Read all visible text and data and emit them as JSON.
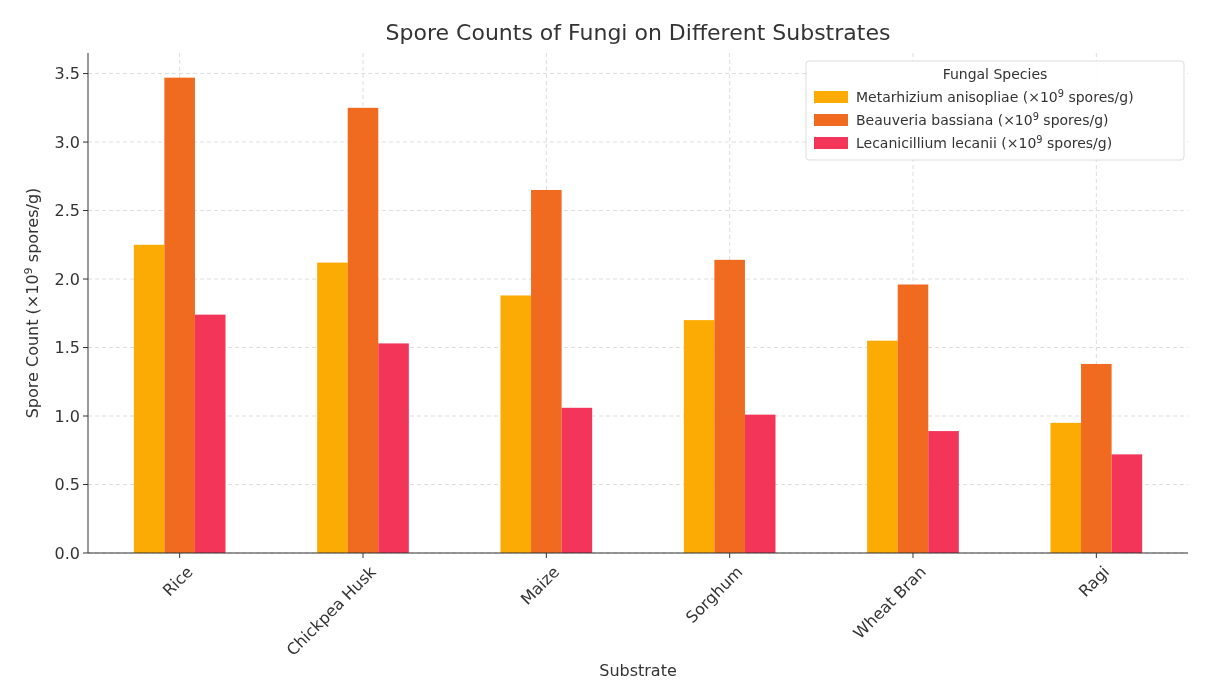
{
  "chart_data": {
    "type": "bar",
    "title": "Spore Counts of Fungi on Different Substrates",
    "xlabel": "Substrate",
    "ylabel": "Spore Count (×10$^{9}$ spores/g)",
    "legend_title": "Fungal Species",
    "categories": [
      "Rice",
      "Chickpea Husk",
      "Maize",
      "Sorghum",
      "Wheat Bran",
      "Ragi"
    ],
    "series": [
      {
        "name": "Metarhizium anisopliae (×10$^{9}$ spores/g)",
        "color": "#fbab03",
        "values": [
          2.25,
          2.12,
          1.88,
          1.7,
          1.55,
          0.95
        ]
      },
      {
        "name": "Beauveria bassiana (×10$^{9}$ spores/g)",
        "color": "#f06a1f",
        "values": [
          3.47,
          3.25,
          2.65,
          2.14,
          1.96,
          1.38
        ]
      },
      {
        "name": "Lecanicillium lecanii (×10$^{9}$ spores/g)",
        "color": "#f23558",
        "values": [
          1.74,
          1.53,
          1.06,
          1.01,
          0.89,
          0.72
        ]
      }
    ],
    "ylim": [
      0,
      3.65
    ],
    "yticks": [
      {
        "value": 0,
        "label": "0.0"
      },
      0.5,
      {
        "value": 1,
        "label": "1.0"
      },
      1.5,
      {
        "value": 2,
        "label": "2.0"
      },
      2.5,
      {
        "value": 3,
        "label": "3.0"
      },
      3.5
    ],
    "grid": true,
    "legend": "top right"
  }
}
